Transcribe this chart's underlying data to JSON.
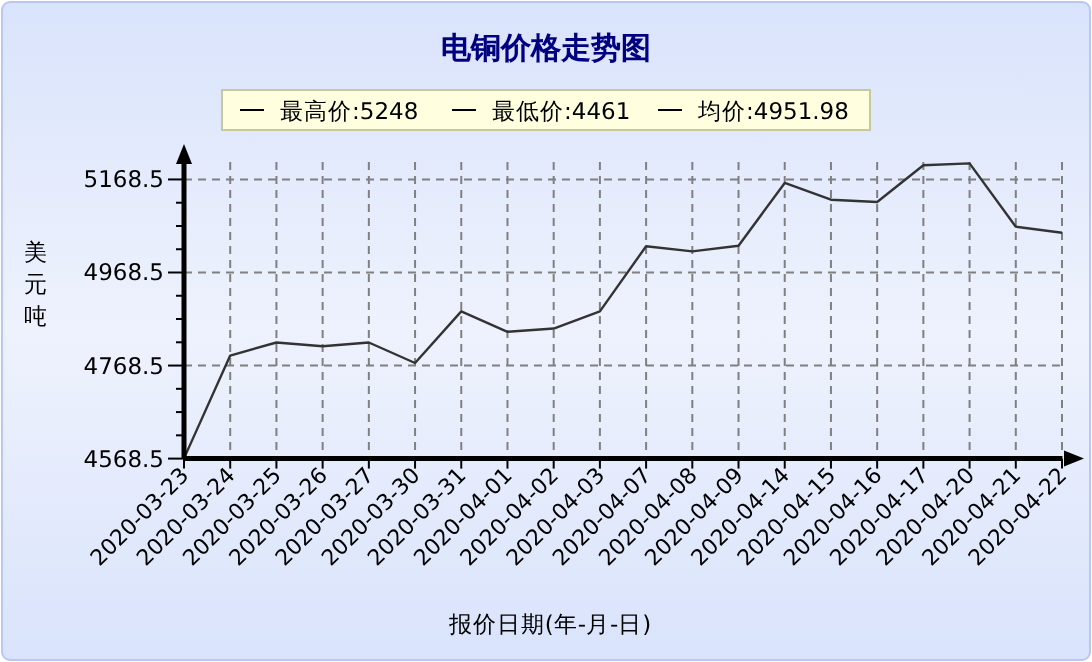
{
  "chart_data": {
    "type": "line",
    "title": "电铜价格走势图",
    "xlabel": "报价日期(年-月-日)",
    "ylabel": "美元吨",
    "annotations": [
      "最高价:5248",
      "最低价:4461",
      "均价:4951.98"
    ],
    "categories": [
      "2020-03-23",
      "2020-03-24",
      "2020-03-25",
      "2020-03-26",
      "2020-03-27",
      "2020-03-30",
      "2020-03-31",
      "2020-04-01",
      "2020-04-02",
      "2020-04-03",
      "2020-04-07",
      "2020-04-08",
      "2020-04-09",
      "2020-04-14",
      "2020-04-15",
      "2020-04-16",
      "2020-04-17",
      "2020-04-20",
      "2020-04-21",
      "2020-04-22"
    ],
    "series": [
      {
        "color": "#333333",
        "values": [
          4569,
          4790,
          4818,
          4810,
          4818,
          4774,
          4885,
          4841,
          4848,
          4885,
          5025,
          5014,
          5026,
          5161,
          5125,
          5120,
          5199,
          5203,
          5067,
          5054
        ]
      }
    ],
    "ylim": [
      4568.5,
      5206
    ],
    "yticks": [
      4568.5,
      {
        "value": 4618.5,
        "label": null
      },
      {
        "value": 4668.5,
        "label": null
      },
      {
        "value": 4718.5,
        "label": null
      },
      4768.5,
      {
        "value": 4818.5,
        "label": null
      },
      {
        "value": 4868.5,
        "label": null
      },
      {
        "value": 4918.5,
        "label": null
      },
      4968.5,
      {
        "value": 5018.5,
        "label": null
      },
      {
        "value": 5068.5,
        "label": null
      },
      {
        "value": 5118.5,
        "label": null
      },
      5168.5
    ],
    "grid": true,
    "marker": "none",
    "line_style": "solid"
  }
}
